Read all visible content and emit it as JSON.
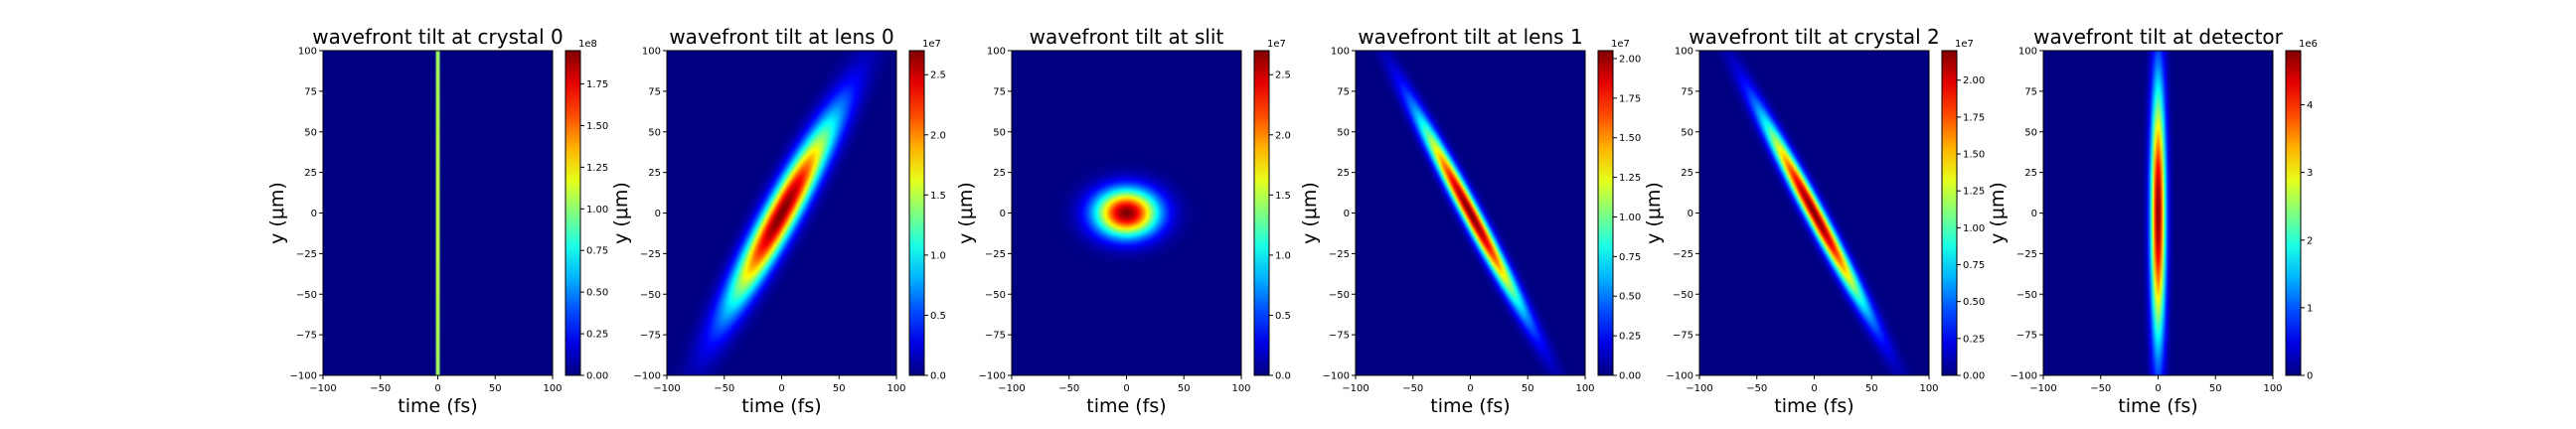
{
  "chart_data": [
    {
      "type": "heatmap",
      "title": "wavefront tilt at crystal 0",
      "xlabel": "time (fs)",
      "ylabel": "y (μm)",
      "xlim": [
        -100,
        100
      ],
      "ylim": [
        -100,
        100
      ],
      "x_ticks": [
        "−100",
        "−50",
        "0",
        "50",
        "100"
      ],
      "y_ticks": [
        "100",
        "75",
        "50",
        "25",
        "0",
        "−25",
        "−50",
        "−75",
        "−100"
      ],
      "colormap": "jet",
      "colorbar": {
        "range": [
          0,
          1.95
        ],
        "offset": "1e8",
        "ticks": [
          "0.00",
          "0.25",
          "0.50",
          "0.75",
          "1.00",
          "1.25",
          "1.50",
          "1.75"
        ],
        "tick_values": [
          0,
          0.25,
          0.5,
          0.75,
          1.0,
          1.25,
          1.5,
          1.75
        ]
      },
      "beam": {
        "center_t_fs": 0,
        "center_y_um": 0,
        "sigma_t_fs": 0.8,
        "sigma_y_um": 300,
        "tilt_fs_per_um": 0
      }
    },
    {
      "type": "heatmap",
      "title": "wavefront tilt at lens 0",
      "xlabel": "time (fs)",
      "ylabel": "y (μm)",
      "xlim": [
        -100,
        100
      ],
      "ylim": [
        -100,
        100
      ],
      "x_ticks": [
        "−100",
        "−50",
        "0",
        "50",
        "100"
      ],
      "y_ticks": [
        "100",
        "75",
        "50",
        "25",
        "0",
        "−25",
        "−50",
        "−75",
        "−100"
      ],
      "colormap": "jet",
      "colorbar": {
        "range": [
          0,
          2.7
        ],
        "offset": "1e7",
        "ticks": [
          "0.0",
          "0.5",
          "1.0",
          "1.5",
          "2.0",
          "2.5"
        ],
        "tick_values": [
          0,
          0.5,
          1.0,
          1.5,
          2.0,
          2.5
        ]
      },
      "beam": {
        "center_t_fs": 0,
        "center_y_um": 0,
        "sigma_t_fs": 11,
        "sigma_y_um": 40,
        "tilt_fs_per_um": 0.75
      }
    },
    {
      "type": "heatmap",
      "title": "wavefront tilt at slit",
      "xlabel": "time (fs)",
      "ylabel": "y (μm)",
      "xlim": [
        -100,
        100
      ],
      "ylim": [
        -100,
        100
      ],
      "x_ticks": [
        "−100",
        "−50",
        "0",
        "50",
        "100"
      ],
      "y_ticks": [
        "100",
        "75",
        "50",
        "25",
        "0",
        "−25",
        "−50",
        "−75",
        "−100"
      ],
      "colormap": "jet",
      "colorbar": {
        "range": [
          0,
          2.7
        ],
        "offset": "1e7",
        "ticks": [
          "0.0",
          "0.5",
          "1.0",
          "1.5",
          "2.0",
          "2.5"
        ],
        "tick_values": [
          0,
          0.5,
          1.0,
          1.5,
          2.0,
          2.5
        ]
      },
      "beam": {
        "center_t_fs": 0,
        "center_y_um": 0,
        "sigma_t_fs": 19,
        "sigma_y_um": 10,
        "tilt_fs_per_um": 0
      }
    },
    {
      "type": "heatmap",
      "title": "wavefront tilt at lens 1",
      "xlabel": "time (fs)",
      "ylabel": "y (μm)",
      "xlim": [
        -100,
        100
      ],
      "ylim": [
        -100,
        100
      ],
      "x_ticks": [
        "−100",
        "−50",
        "0",
        "50",
        "100"
      ],
      "y_ticks": [
        "100",
        "75",
        "50",
        "25",
        "0",
        "−25",
        "−50",
        "−75",
        "−100"
      ],
      "colormap": "jet",
      "colorbar": {
        "range": [
          0,
          2.05
        ],
        "offset": "1e7",
        "ticks": [
          "0.00",
          "0.25",
          "0.50",
          "0.75",
          "1.00",
          "1.25",
          "1.50",
          "1.75",
          "2.00"
        ],
        "tick_values": [
          0,
          0.25,
          0.5,
          0.75,
          1.0,
          1.25,
          1.5,
          1.75,
          2.0
        ]
      },
      "beam": {
        "center_t_fs": 0,
        "center_y_um": 0,
        "sigma_t_fs": 6,
        "sigma_y_um": 40,
        "tilt_fs_per_um": -0.75
      }
    },
    {
      "type": "heatmap",
      "title": "wavefront tilt at crystal 2",
      "xlabel": "time (fs)",
      "ylabel": "y (μm)",
      "xlim": [
        -100,
        100
      ],
      "ylim": [
        -100,
        100
      ],
      "x_ticks": [
        "−100",
        "−50",
        "0",
        "50",
        "100"
      ],
      "y_ticks": [
        "100",
        "75",
        "50",
        "25",
        "0",
        "−25",
        "−50",
        "−75",
        "−100"
      ],
      "colormap": "jet",
      "colorbar": {
        "range": [
          0,
          2.2
        ],
        "offset": "1e7",
        "ticks": [
          "0.00",
          "0.25",
          "0.50",
          "0.75",
          "1.00",
          "1.25",
          "1.50",
          "1.75",
          "2.00"
        ],
        "tick_values": [
          0,
          0.25,
          0.5,
          0.75,
          1.0,
          1.25,
          1.5,
          1.75,
          2.0
        ]
      },
      "beam": {
        "center_t_fs": 0,
        "center_y_um": 0,
        "sigma_t_fs": 6,
        "sigma_y_um": 40,
        "tilt_fs_per_um": -0.75
      }
    },
    {
      "type": "heatmap",
      "title": "wavefront tilt at detector",
      "xlabel": "time (fs)",
      "ylabel": "y (μm)",
      "xlim": [
        -100,
        100
      ],
      "ylim": [
        -100,
        100
      ],
      "x_ticks": [
        "−100",
        "−50",
        "0",
        "50",
        "100"
      ],
      "y_ticks": [
        "100",
        "75",
        "50",
        "25",
        "0",
        "−25",
        "−50",
        "−75",
        "−100"
      ],
      "colormap": "jet",
      "colorbar": {
        "range": [
          0,
          4.8
        ],
        "offset": "1e6",
        "ticks": [
          "0",
          "1",
          "2",
          "3",
          "4"
        ],
        "tick_values": [
          0,
          1,
          2,
          3,
          4
        ]
      },
      "beam": {
        "center_t_fs": 0,
        "center_y_um": 0,
        "sigma_t_fs": 4.5,
        "sigma_y_um": 55,
        "tilt_fs_per_um": 0
      }
    }
  ]
}
